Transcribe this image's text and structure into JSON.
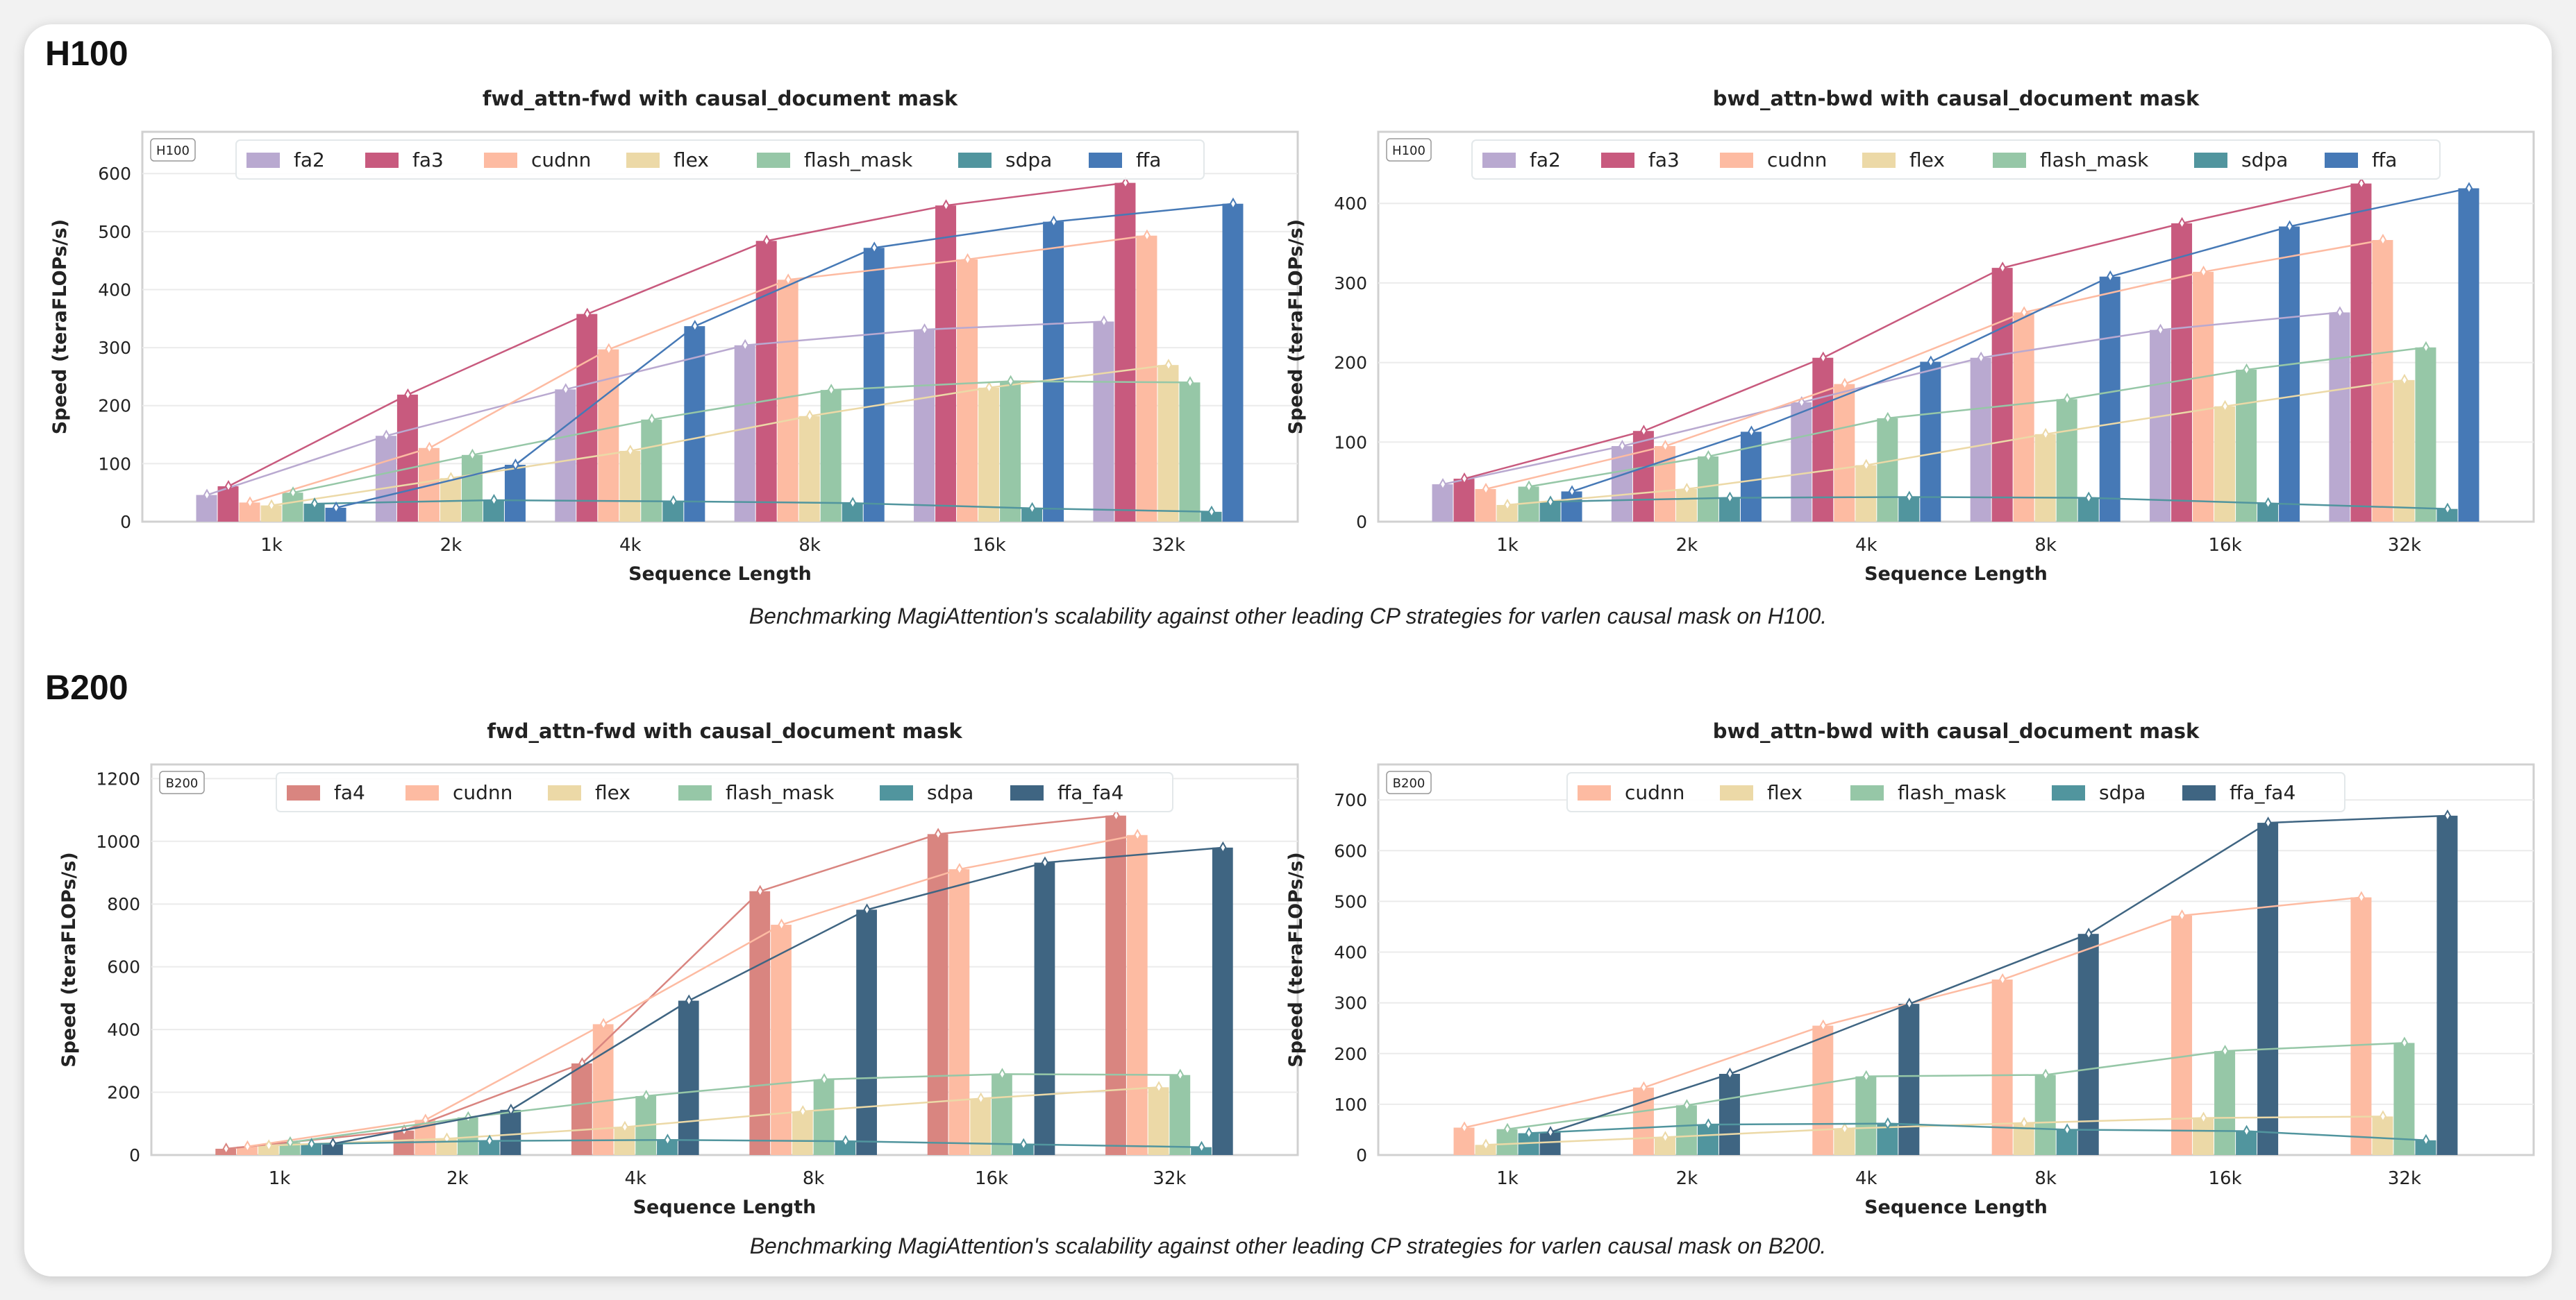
{
  "sections": [
    {
      "heading": "H100",
      "caption": "Benchmarking MagiAttention's scalability against other leading CP strategies for varlen causal mask on H100."
    },
    {
      "heading": "B200",
      "caption": "Benchmarking MagiAttention's scalability against other leading CP strategies for varlen causal mask on B200."
    }
  ],
  "chart_data": [
    {
      "type": "bar",
      "title": "fwd_attn-fwd with causal_document mask",
      "badge": "H100",
      "xlabel": "Sequence Length",
      "ylabel": "Speed (teraFLOPs/s)",
      "categories": [
        "1k",
        "2k",
        "4k",
        "8k",
        "16k",
        "32k"
      ],
      "ylim": [
        0,
        672
      ],
      "yticks": [
        0,
        100,
        200,
        300,
        400,
        500,
        600
      ],
      "grid": true,
      "legend": "top-center",
      "series": [
        {
          "name": "fa2",
          "color": "#b9a9d0",
          "values": [
            46,
            148,
            228,
            304,
            331,
            345
          ]
        },
        {
          "name": "fa3",
          "color": "#c85a7e",
          "values": [
            61,
            219,
            358,
            484,
            545,
            584
          ]
        },
        {
          "name": "cudnn",
          "color": "#fdbba2",
          "values": [
            33,
            127,
            297,
            417,
            452,
            493
          ]
        },
        {
          "name": "flex",
          "color": "#ecd9a7",
          "values": [
            28,
            75,
            122,
            182,
            231,
            270
          ]
        },
        {
          "name": "flash_mask",
          "color": "#96c7a7",
          "values": [
            50,
            115,
            176,
            227,
            242,
            240
          ]
        },
        {
          "name": "sdpa",
          "color": "#51959e",
          "values": [
            31,
            37,
            35,
            32,
            23,
            17
          ]
        },
        {
          "name": "ffa",
          "color": "#4679b6",
          "values": [
            24,
            98,
            337,
            472,
            517,
            548
          ]
        }
      ]
    },
    {
      "type": "bar",
      "title": "bwd_attn-bwd with causal_document mask",
      "badge": "H100",
      "xlabel": "Sequence Length",
      "ylabel": "Speed (teraFLOPs/s)",
      "categories": [
        "1k",
        "2k",
        "4k",
        "8k",
        "16k",
        "32k"
      ],
      "ylim": [
        0,
        490
      ],
      "yticks": [
        0,
        100,
        200,
        300,
        400
      ],
      "grid": true,
      "legend": "top-center",
      "series": [
        {
          "name": "fa2",
          "color": "#b9a9d0",
          "values": [
            47,
            95,
            150,
            206,
            241,
            263
          ]
        },
        {
          "name": "fa3",
          "color": "#c85a7e",
          "values": [
            54,
            114,
            206,
            319,
            375,
            425
          ]
        },
        {
          "name": "cudnn",
          "color": "#fdbba2",
          "values": [
            41,
            95,
            173,
            263,
            314,
            354
          ]
        },
        {
          "name": "flex",
          "color": "#ecd9a7",
          "values": [
            21,
            41,
            71,
            110,
            145,
            178
          ]
        },
        {
          "name": "flash_mask",
          "color": "#96c7a7",
          "values": [
            44,
            82,
            130,
            154,
            191,
            219
          ]
        },
        {
          "name": "sdpa",
          "color": "#51959e",
          "values": [
            25,
            30,
            31,
            30,
            23,
            16
          ]
        },
        {
          "name": "ffa",
          "color": "#4679b6",
          "values": [
            38,
            113,
            201,
            308,
            371,
            419
          ]
        }
      ]
    },
    {
      "type": "bar",
      "title": "fwd_attn-fwd with causal_document mask",
      "badge": "B200",
      "xlabel": "Sequence Length",
      "ylabel": "Speed (teraFLOPs/s)",
      "categories": [
        "1k",
        "2k",
        "4k",
        "8k",
        "16k",
        "32k"
      ],
      "ylim": [
        0,
        1245
      ],
      "yticks": [
        0,
        200,
        400,
        600,
        800,
        1000,
        1200
      ],
      "grid": true,
      "legend": "top-center",
      "series": [
        {
          "name": "fa4",
          "color": "#d98580",
          "values": [
            20,
            78,
            292,
            841,
            1023,
            1082
          ]
        },
        {
          "name": "cudnn",
          "color": "#fdbba2",
          "values": [
            27,
            112,
            417,
            734,
            911,
            1020
          ]
        },
        {
          "name": "flex",
          "color": "#ecd9a7",
          "values": [
            30,
            52,
            89,
            139,
            180,
            216
          ]
        },
        {
          "name": "flash_mask",
          "color": "#96c7a7",
          "values": [
            40,
            120,
            188,
            241,
            258,
            255
          ]
        },
        {
          "name": "sdpa",
          "color": "#51959e",
          "values": [
            35,
            45,
            48,
            44,
            34,
            25
          ]
        },
        {
          "name": "ffa_fa4",
          "color": "#3f6582",
          "values": [
            36,
            144,
            492,
            782,
            932,
            980
          ]
        }
      ]
    },
    {
      "type": "bar",
      "title": "bwd_attn-bwd with causal_document mask",
      "badge": "B200",
      "xlabel": "Sequence Length",
      "ylabel": "Speed (teraFLOPs/s)",
      "categories": [
        "1k",
        "2k",
        "4k",
        "8k",
        "16k",
        "32k"
      ],
      "ylim": [
        0,
        770
      ],
      "yticks": [
        0,
        100,
        200,
        300,
        400,
        500,
        600,
        700
      ],
      "grid": true,
      "legend": "top-center",
      "series": [
        {
          "name": "cudnn",
          "color": "#fdbba2",
          "values": [
            54,
            133,
            255,
            346,
            472,
            508
          ]
        },
        {
          "name": "flex",
          "color": "#ecd9a7",
          "values": [
            20,
            35,
            52,
            63,
            73,
            76
          ]
        },
        {
          "name": "flash_mask",
          "color": "#96c7a7",
          "values": [
            51,
            98,
            155,
            158,
            205,
            221
          ]
        },
        {
          "name": "sdpa",
          "color": "#51959e",
          "values": [
            43,
            60,
            62,
            50,
            47,
            29
          ]
        },
        {
          "name": "ffa_fa4",
          "color": "#3f6582",
          "values": [
            45,
            160,
            298,
            436,
            655,
            669
          ]
        }
      ]
    }
  ]
}
